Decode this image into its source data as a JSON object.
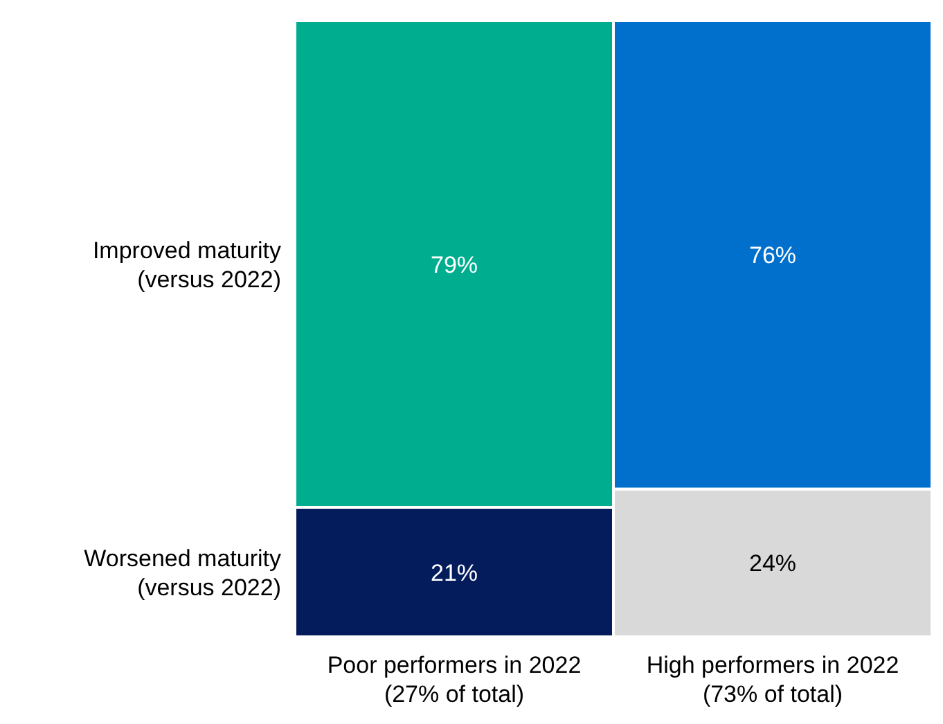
{
  "chart_data": {
    "type": "bar",
    "stacked": true,
    "categories": [
      "Poor performers in 2022 (27% of total)",
      "High performers in 2022 (73% of total)"
    ],
    "series": [
      {
        "name": "Worsened maturity (versus 2022)",
        "colors": [
          "#051c5c",
          "#d9d9d9"
        ],
        "values": [
          21,
          24
        ],
        "value_labels": [
          "21%",
          "24%"
        ]
      },
      {
        "name": "Improved maturity (versus 2022)",
        "colors": [
          "#00ae8f",
          "#0070cc"
        ],
        "values": [
          79,
          76
        ],
        "value_labels": [
          "79%",
          "76%"
        ]
      }
    ]
  }
}
